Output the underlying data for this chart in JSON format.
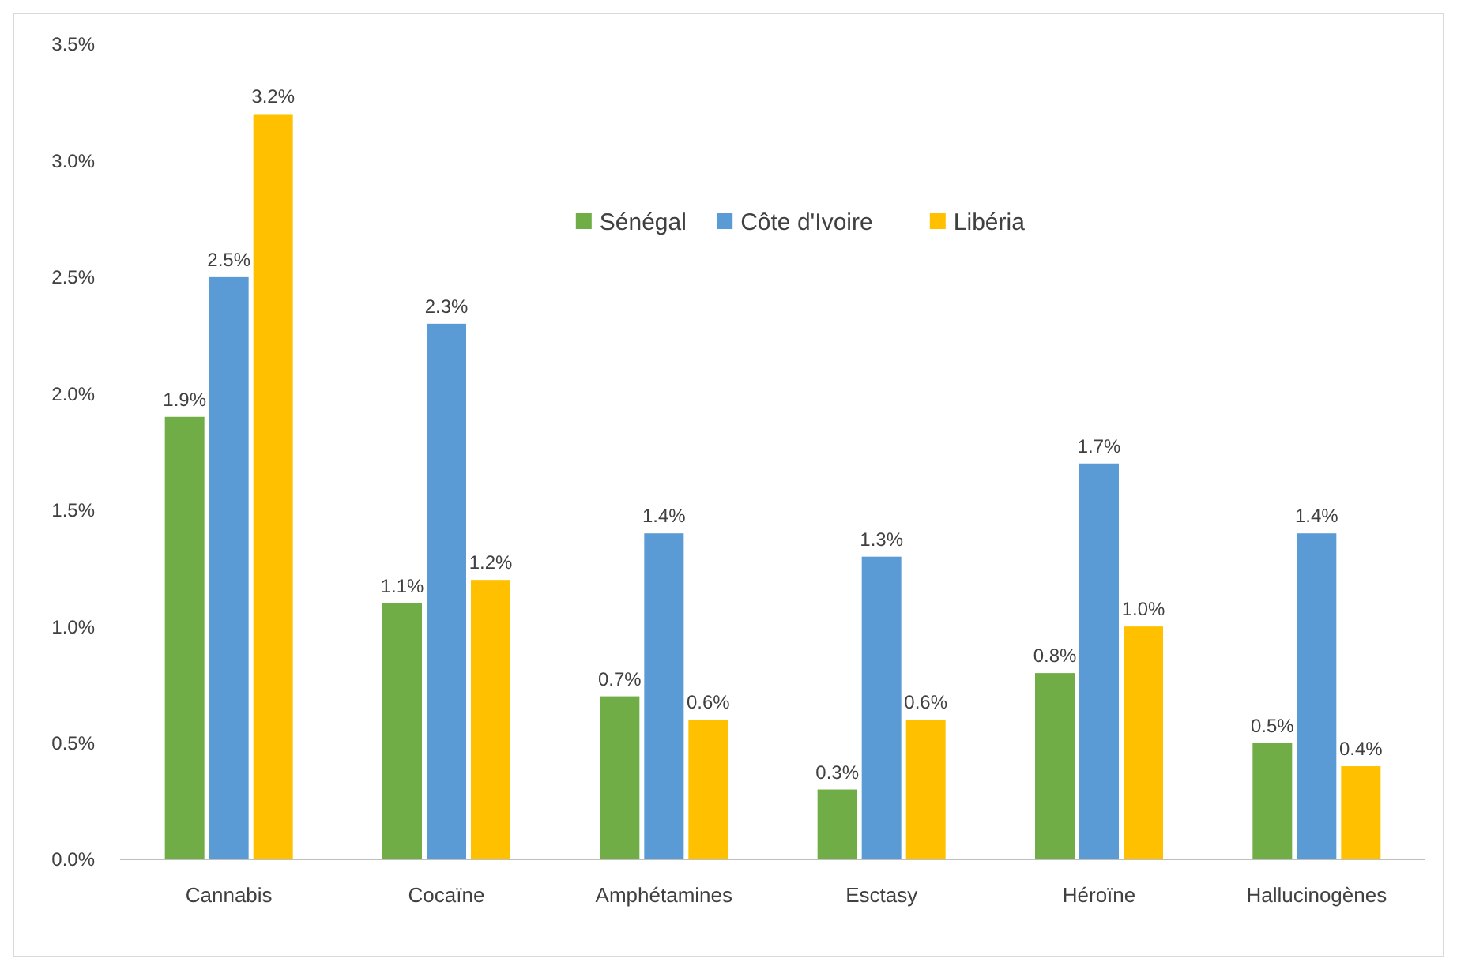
{
  "chart_data": {
    "type": "bar",
    "categories": [
      "Cannabis",
      "Cocaïne",
      "Amphétamines",
      "Esctasy",
      "Héroïne",
      "Hallucinogènes"
    ],
    "series": [
      {
        "name": "Sénégal",
        "color": "#70ad47",
        "values": [
          1.9,
          1.1,
          0.7,
          0.3,
          0.8,
          0.5
        ],
        "value_labels": [
          "1.9%",
          "1.1%",
          "0.7%",
          "0.3%",
          "0.8%",
          "0.5%"
        ]
      },
      {
        "name": "Côte d'Ivoire",
        "color": "#5b9bd5",
        "values": [
          2.5,
          2.3,
          1.4,
          1.3,
          1.7,
          1.4
        ],
        "value_labels": [
          "2.5%",
          "2.3%",
          "1.4%",
          "1.3%",
          "1.7%",
          "1.4%"
        ]
      },
      {
        "name": "Libéria",
        "color": "#ffc000",
        "values": [
          3.2,
          1.2,
          0.6,
          0.6,
          1.0,
          0.4
        ],
        "value_labels": [
          "3.2%",
          "1.2%",
          "0.6%",
          "0.6%",
          "1.0%",
          "0.4%"
        ]
      }
    ],
    "ylim": [
      0,
      3.5
    ],
    "yticks": [
      {
        "value": 0,
        "label": "0.0%"
      },
      {
        "value": 0.5,
        "label": "0.5%"
      },
      {
        "value": 1,
        "label": "1.0%"
      },
      {
        "value": 1.5,
        "label": "1.5%"
      },
      {
        "value": 2,
        "label": "2.0%"
      },
      {
        "value": 2.5,
        "label": "2.5%"
      },
      {
        "value": 3,
        "label": "3.0%"
      },
      {
        "value": 3.5,
        "label": "3.5%"
      }
    ],
    "grid": false,
    "legend": "top"
  }
}
